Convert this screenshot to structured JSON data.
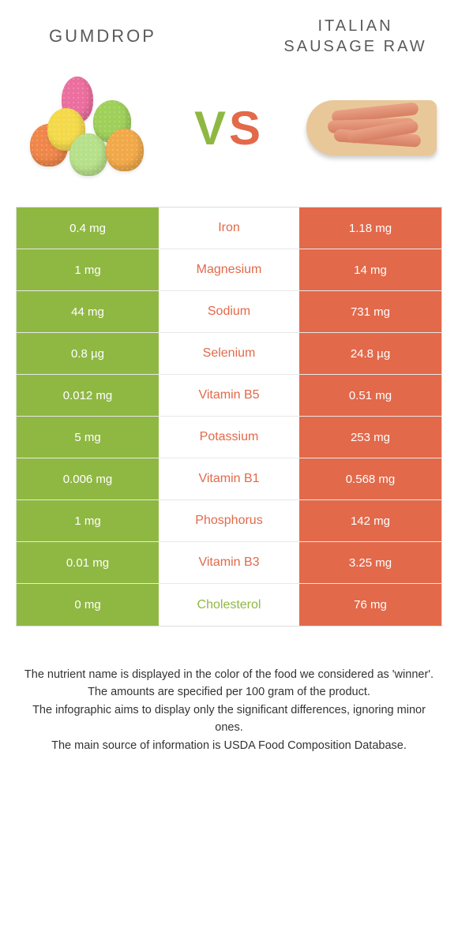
{
  "colors": {
    "left": "#8fb843",
    "right": "#e2694a",
    "row_border": "#e8e8e8",
    "text_dark": "#333333",
    "title_gray": "#5a5a5a"
  },
  "foods": {
    "left": {
      "title": "Gumdrop"
    },
    "right": {
      "title": "Italian sausage raw"
    }
  },
  "vs": {
    "v": "V",
    "s": "S"
  },
  "rows": [
    {
      "nutrient": "Iron",
      "left": "0.4 mg",
      "right": "1.18 mg",
      "winner": "right"
    },
    {
      "nutrient": "Magnesium",
      "left": "1 mg",
      "right": "14 mg",
      "winner": "right"
    },
    {
      "nutrient": "Sodium",
      "left": "44 mg",
      "right": "731 mg",
      "winner": "right"
    },
    {
      "nutrient": "Selenium",
      "left": "0.8 µg",
      "right": "24.8 µg",
      "winner": "right"
    },
    {
      "nutrient": "Vitamin B5",
      "left": "0.012 mg",
      "right": "0.51 mg",
      "winner": "right"
    },
    {
      "nutrient": "Potassium",
      "left": "5 mg",
      "right": "253 mg",
      "winner": "right"
    },
    {
      "nutrient": "Vitamin B1",
      "left": "0.006 mg",
      "right": "0.568 mg",
      "winner": "right"
    },
    {
      "nutrient": "Phosphorus",
      "left": "1 mg",
      "right": "142 mg",
      "winner": "right"
    },
    {
      "nutrient": "Vitamin B3",
      "left": "0.01 mg",
      "right": "3.25 mg",
      "winner": "right"
    },
    {
      "nutrient": "Cholesterol",
      "left": "0 mg",
      "right": "76 mg",
      "winner": "left"
    }
  ],
  "gumdrop_colors": [
    "#f0874a",
    "#ec6fa0",
    "#f4d94a",
    "#9fd05a",
    "#b7e08a",
    "#f2a94a"
  ],
  "footnotes": [
    "The nutrient name is displayed in the color of the food we considered as 'winner'.",
    "The amounts are specified per 100 gram of the product.",
    "The infographic aims to display only the significant differences, ignoring minor ones.",
    "The main source of information is USDA Food Composition Database."
  ]
}
